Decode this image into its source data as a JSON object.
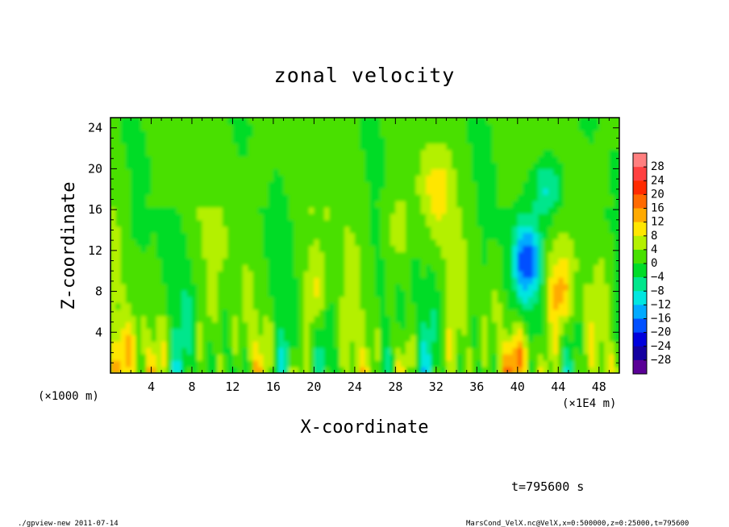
{
  "chart_data": {
    "type": "heatmap",
    "title": "zonal velocity",
    "xlabel": "X-coordinate",
    "ylabel": "Z-coordinate",
    "x_unit_left": "(×1000 m)",
    "x_unit_right": "(×1E4 m)",
    "xlim": [
      0,
      50
    ],
    "ylim": [
      0,
      25
    ],
    "xticks": [
      4,
      8,
      12,
      16,
      20,
      24,
      28,
      32,
      36,
      40,
      44,
      48
    ],
    "yticks": [
      4,
      8,
      12,
      16,
      20,
      24
    ],
    "colorbar": {
      "levels": [
        28,
        24,
        20,
        16,
        12,
        8,
        4,
        0,
        -4,
        -8,
        -12,
        -16,
        -20,
        -24,
        -28
      ],
      "colors": [
        "#ff7f7f",
        "#ff4040",
        "#ff2a00",
        "#ff6a00",
        "#ffaa00",
        "#ffe600",
        "#b4f000",
        "#48e000",
        "#00dc28",
        "#00e68c",
        "#00e6e0",
        "#00aaff",
        "#0050ff",
        "#0000dc",
        "#1400a0",
        "#5a0096"
      ]
    },
    "features": [
      {
        "x": 20,
        "z": 8,
        "v": 8
      },
      {
        "x": 28,
        "z": 14,
        "v": 9
      },
      {
        "x": 32,
        "z": 18,
        "v": 10
      },
      {
        "x": 40.5,
        "z": 1,
        "v": 18
      },
      {
        "x": 44,
        "z": 8,
        "v": 12
      },
      {
        "x": 41,
        "z": 11,
        "v": -16
      },
      {
        "x": 43,
        "z": 18,
        "v": -10
      },
      {
        "x": 2,
        "z": 1.5,
        "v": 12
      }
    ]
  },
  "footer": {
    "time_label": "t=795600 s",
    "program": "./gpview-new  2011-07-14",
    "source": "MarsCond_VelX.nc@VelX,x=0:500000,z=0:25000,t=795600"
  },
  "colors": {
    "background_field": "#48e000"
  }
}
